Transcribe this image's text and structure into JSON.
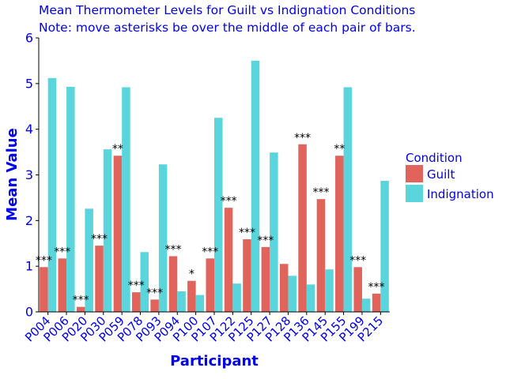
{
  "chart_data": {
    "type": "bar",
    "title": "Mean Thermometer Levels for Guilt vs Indignation Conditions",
    "subtitle": "Note: move asterisks be over the middle of each pair of bars.",
    "xlabel": "Participant",
    "ylabel": "Mean Value",
    "ylim": [
      0,
      6
    ],
    "yticks": [
      "0",
      "1",
      "2",
      "3",
      "4",
      "5",
      "6"
    ],
    "grid": false,
    "legend_placement": "right",
    "legend_title": "Condition",
    "categories": [
      "P004",
      "P006",
      "P020",
      "P030",
      "P059",
      "P078",
      "P093",
      "P094",
      "P100",
      "P107",
      "P122",
      "P125",
      "P127",
      "P128",
      "P136",
      "P145",
      "P155",
      "P199",
      "P215"
    ],
    "series": [
      {
        "name": "Guilt",
        "color": "#e0635c",
        "values": [
          0.98,
          1.17,
          0.11,
          1.45,
          3.42,
          0.43,
          0.27,
          1.22,
          0.68,
          1.17,
          2.28,
          1.59,
          1.42,
          1.05,
          3.67,
          2.47,
          3.42,
          0.98,
          0.4
        ]
      },
      {
        "name": "Indignation",
        "color": "#5bd5dc",
        "values": [
          5.12,
          4.93,
          2.26,
          3.56,
          4.92,
          1.31,
          3.23,
          0.45,
          0.37,
          4.25,
          0.62,
          5.5,
          3.49,
          0.79,
          0.6,
          0.93,
          4.92,
          0.29,
          2.87
        ]
      }
    ],
    "annotations": [
      "***",
      "***",
      "***",
      "***",
      "**",
      "***",
      "***",
      "***",
      "*",
      "***",
      "***",
      "***",
      "***",
      "",
      "***",
      "***",
      "**",
      "***",
      "***"
    ]
  }
}
